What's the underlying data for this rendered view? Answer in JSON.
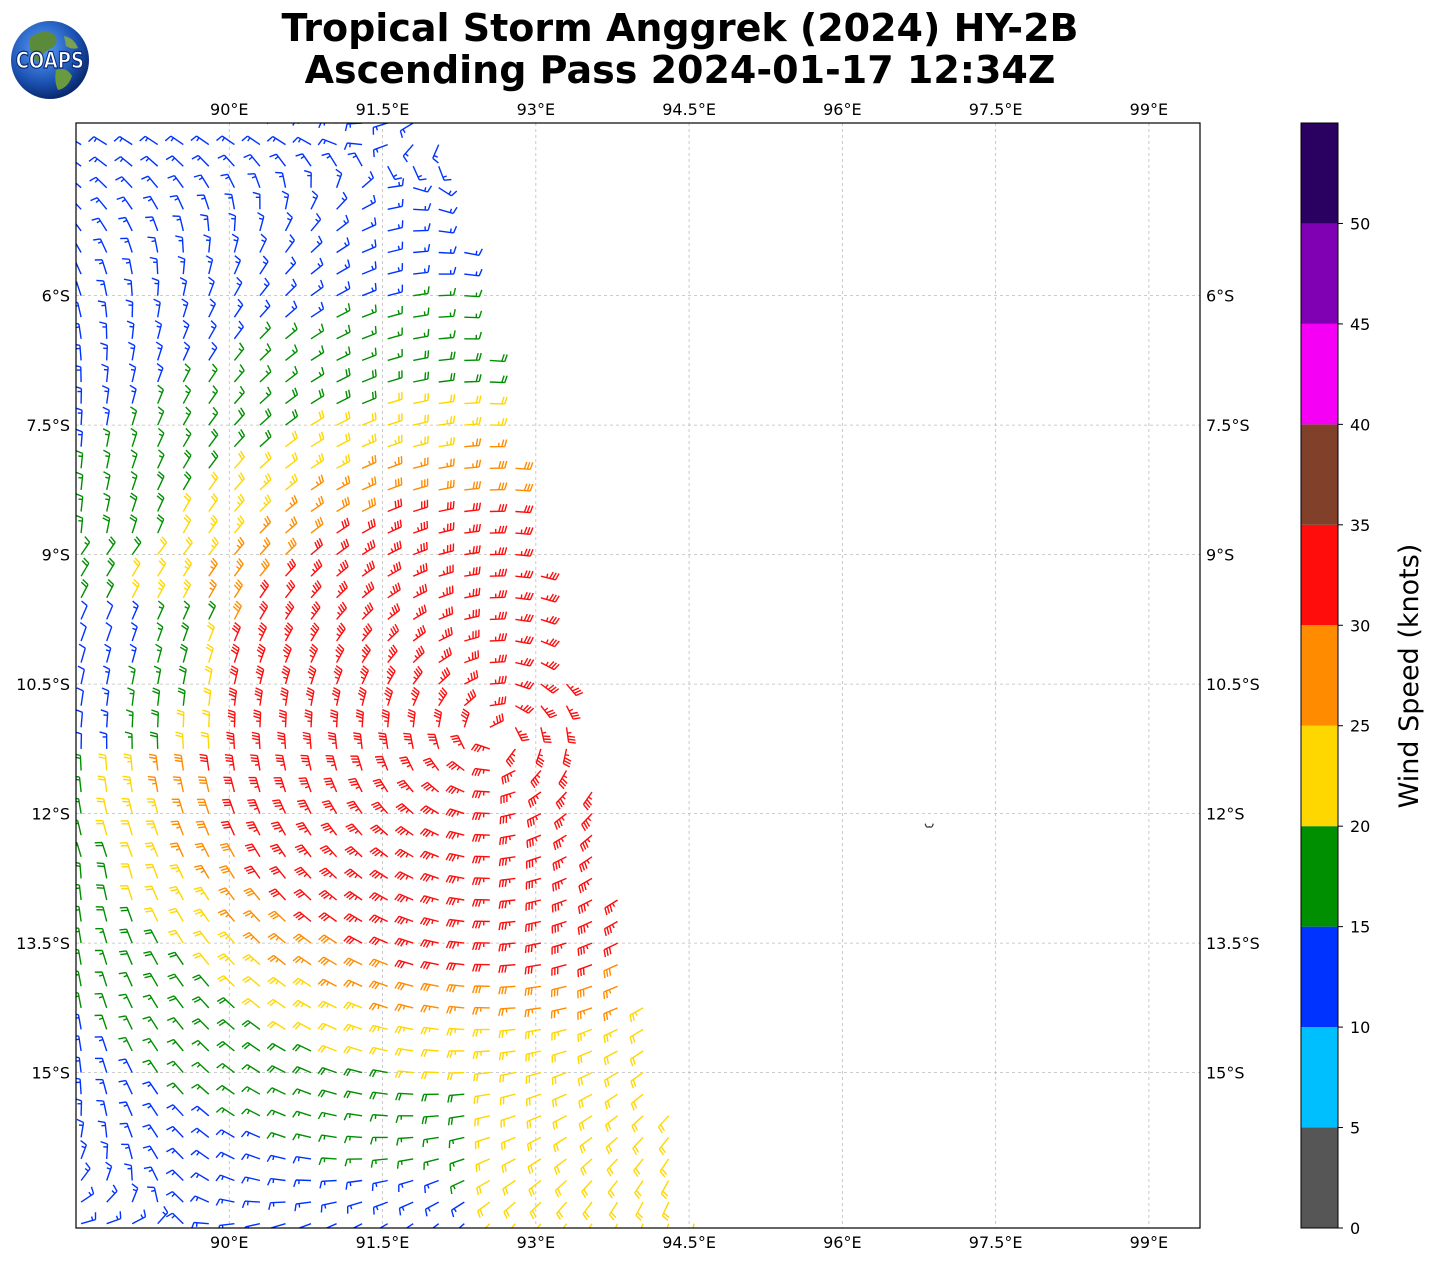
{
  "title": {
    "line1": "Tropical Storm Anggrek (2024) HY-2B",
    "line2": "Ascending Pass 2024-01-17 12:34Z"
  },
  "logo": {
    "icon": "globe-icon",
    "text": "COAPS"
  },
  "map": {
    "lon_range": [
      88.5,
      99.5
    ],
    "lat_range": [
      -16.8,
      -4.0
    ],
    "gridlines": true,
    "lon_ticks": [
      {
        "value": 90.0,
        "label": "90°E"
      },
      {
        "value": 91.5,
        "label": "91.5°E"
      },
      {
        "value": 93.0,
        "label": "93°E"
      },
      {
        "value": 94.5,
        "label": "94.5°E"
      },
      {
        "value": 96.0,
        "label": "96°E"
      },
      {
        "value": 97.5,
        "label": "97.5°E"
      },
      {
        "value": 99.0,
        "label": "99°E"
      }
    ],
    "lat_ticks": [
      {
        "value": -6.0,
        "label": "6°S"
      },
      {
        "value": -7.5,
        "label": "7.5°S"
      },
      {
        "value": -9.0,
        "label": "9°S"
      },
      {
        "value": -10.5,
        "label": "10.5°S"
      },
      {
        "value": -12.0,
        "label": "12°S"
      },
      {
        "value": -13.5,
        "label": "13.5°S"
      },
      {
        "value": -15.0,
        "label": "15°S"
      }
    ],
    "storm_center": {
      "lon": 92.6,
      "lat": -11.1
    },
    "swath_east_edge": [
      [
        92.0,
        -4.0
      ],
      [
        94.6,
        -16.8
      ]
    ],
    "island_marker": {
      "lon": 96.85,
      "lat": -12.15
    }
  },
  "colorbar": {
    "label": "Wind Speed (knots)",
    "min": 0,
    "max": 55,
    "bins": [
      {
        "from": 0,
        "to": 5,
        "color": "#565656"
      },
      {
        "from": 5,
        "to": 10,
        "color": "#00bfff"
      },
      {
        "from": 10,
        "to": 15,
        "color": "#0033ff"
      },
      {
        "from": 15,
        "to": 20,
        "color": "#008f00"
      },
      {
        "from": 20,
        "to": 25,
        "color": "#ffd700"
      },
      {
        "from": 25,
        "to": 30,
        "color": "#ff8c00"
      },
      {
        "from": 30,
        "to": 35,
        "color": "#ff0d0d"
      },
      {
        "from": 35,
        "to": 40,
        "color": "#80402a"
      },
      {
        "from": 40,
        "to": 45,
        "color": "#f500f5"
      },
      {
        "from": 45,
        "to": 50,
        "color": "#8000b4"
      },
      {
        "from": 50,
        "to": 55,
        "color": "#2a0060"
      }
    ],
    "ticks": [
      "0",
      "5",
      "10",
      "15",
      "20",
      "25",
      "30",
      "35",
      "40",
      "45",
      "50"
    ]
  }
}
